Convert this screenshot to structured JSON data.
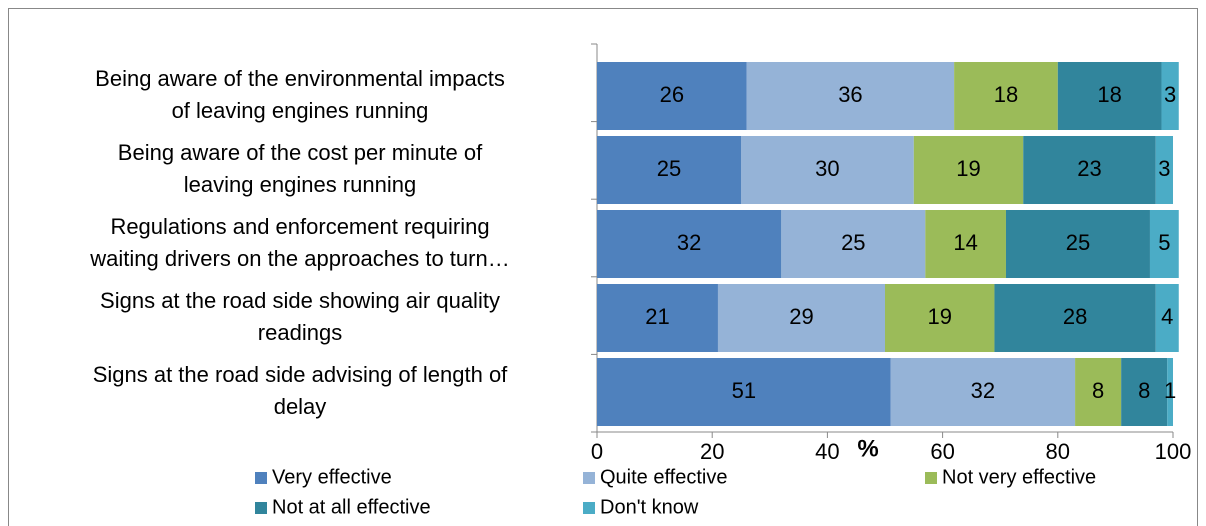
{
  "chart_data": {
    "type": "stacked-bar-horizontal",
    "categories": [
      [
        "Being aware of the environmental impacts",
        "of leaving engines running"
      ],
      [
        "Being aware of the cost per minute of",
        "leaving engines running"
      ],
      [
        "Regulations and enforcement requiring",
        "waiting drivers on the approaches to turn…"
      ],
      [
        "Signs at the road side showing air quality",
        "readings"
      ],
      [
        "Signs at the road side advising of length of",
        "delay"
      ]
    ],
    "series": [
      {
        "name": "Very effective",
        "color": "#4f81bd",
        "values": [
          26,
          25,
          32,
          21,
          51
        ]
      },
      {
        "name": "Quite effective",
        "color": "#95b3d7",
        "values": [
          36,
          30,
          25,
          29,
          32
        ]
      },
      {
        "name": "Not very effective",
        "color": "#9bbb59",
        "values": [
          18,
          19,
          14,
          19,
          8
        ]
      },
      {
        "name": "Not at all effective",
        "color": "#31859c",
        "values": [
          18,
          23,
          25,
          28,
          8
        ]
      },
      {
        "name": "Don't know",
        "color": "#4bacc6",
        "values": [
          3,
          3,
          5,
          4,
          1
        ]
      }
    ],
    "x_label": "%",
    "xlim": [
      0,
      100
    ],
    "xticks": [
      0,
      20,
      40,
      60,
      80,
      100
    ]
  }
}
